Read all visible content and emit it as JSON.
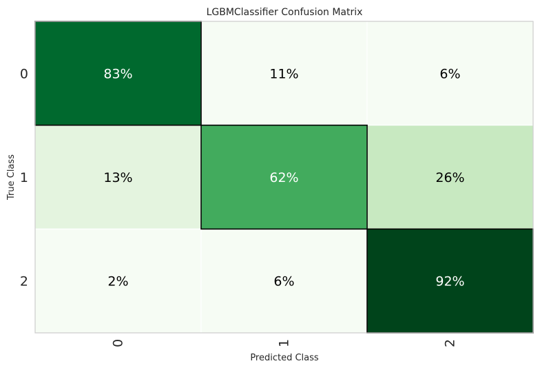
{
  "chart_data": {
    "type": "heatmap",
    "title": "LGBMClassifier Confusion Matrix",
    "xlabel": "Predicted Class",
    "ylabel": "True Class",
    "x_categories": [
      "0",
      "1",
      "2"
    ],
    "y_categories": [
      "0",
      "1",
      "2"
    ],
    "values": [
      [
        83,
        11,
        6
      ],
      [
        13,
        62,
        26
      ],
      [
        2,
        6,
        92
      ]
    ],
    "value_labels": [
      [
        "83%",
        "11%",
        "6%"
      ],
      [
        "13%",
        "62%",
        "26%"
      ],
      [
        "2%",
        "6%",
        "92%"
      ]
    ],
    "cell_colors": [
      [
        "#00692e",
        "#f6fcf4",
        "#f6fcf4"
      ],
      [
        "#e4f4df",
        "#42ab5d",
        "#c8e9c1"
      ],
      [
        "#f6fcf4",
        "#f6fcf4",
        "#00441b"
      ]
    ],
    "text_colors": [
      [
        "#ffffff",
        "#000000",
        "#000000"
      ],
      [
        "#000000",
        "#ffffff",
        "#000000"
      ],
      [
        "#000000",
        "#000000",
        "#ffffff"
      ]
    ],
    "colormap": "Greens",
    "grid": false,
    "diagonal_outlined": true
  }
}
